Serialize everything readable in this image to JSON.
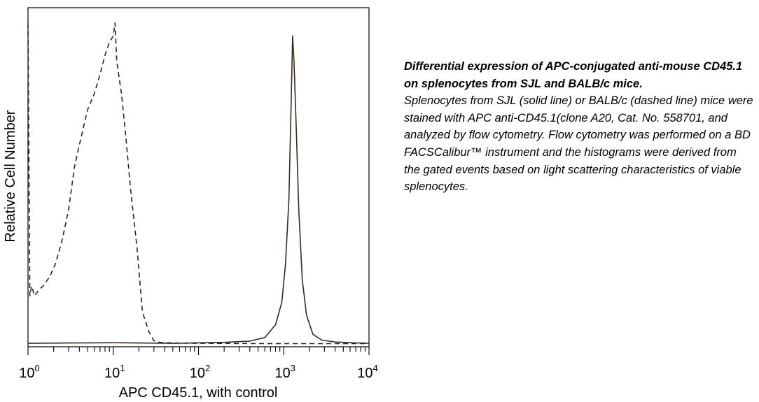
{
  "chart_data": {
    "type": "line",
    "title": "",
    "xlabel": "APC CD45.1, with control",
    "ylabel": "Relative Cell Number",
    "x_scale": "log",
    "xlim": [
      1,
      10000
    ],
    "ylim": [
      0,
      100
    ],
    "grid": false,
    "legend": "none",
    "x_ticks": [
      {
        "value": 1,
        "base": "10",
        "exp": "0"
      },
      {
        "value": 10,
        "base": "10",
        "exp": "1"
      },
      {
        "value": 100,
        "base": "10",
        "exp": "2"
      },
      {
        "value": 1000,
        "base": "10",
        "exp": "3"
      },
      {
        "value": 10000,
        "base": "10",
        "exp": "4"
      }
    ],
    "series": [
      {
        "style": "solid",
        "color": "#3a2a1e",
        "x": [
          1,
          3,
          10,
          50,
          200,
          400,
          600,
          800,
          950,
          1050,
          1150,
          1220,
          1270,
          1320,
          1400,
          1500,
          1650,
          1850,
          2200,
          2800,
          4000,
          6000,
          10000
        ],
        "y": [
          0.2,
          0.3,
          0.4,
          0.2,
          0.5,
          0.9,
          2,
          6,
          13,
          25,
          45,
          75,
          96,
          88,
          68,
          42,
          20,
          9,
          3,
          1.2,
          0.6,
          0.4,
          0.2
        ]
      },
      {
        "style": "dashed",
        "color": "#22223a",
        "x": [
          1,
          1.05,
          1.1,
          1.2,
          1.35,
          1.5,
          1.8,
          2.1,
          2.5,
          3,
          3.5,
          4,
          5,
          6,
          7,
          8,
          9,
          10,
          10.5,
          11,
          12.5,
          14,
          16,
          19,
          22,
          26,
          30,
          35,
          50,
          100,
          1000,
          10000
        ],
        "y": [
          100,
          15,
          18,
          15,
          17,
          18,
          21,
          25,
          32,
          42,
          55,
          62,
          73,
          78,
          84,
          90,
          94,
          96,
          100,
          88,
          78,
          65,
          48,
          30,
          10,
          4,
          1,
          0.5,
          0.3,
          0.2,
          0.1,
          0.1
        ]
      }
    ]
  },
  "caption": {
    "title": "Differential expression of APC-conjugated anti-mouse CD45.1 on splenocytes from SJL and BALB/c mice.",
    "body": "Splenocytes from SJL (solid line) or BALB/c (dashed line) mice were stained with APC anti-CD45.1(clone A20, Cat. No. 558701, and analyzed by flow cytometry.  Flow cytometry was performed on a BD FACSCalibur™ instrument and the histograms were derived from the gated events based on light scattering characteristics of viable splenocytes."
  }
}
